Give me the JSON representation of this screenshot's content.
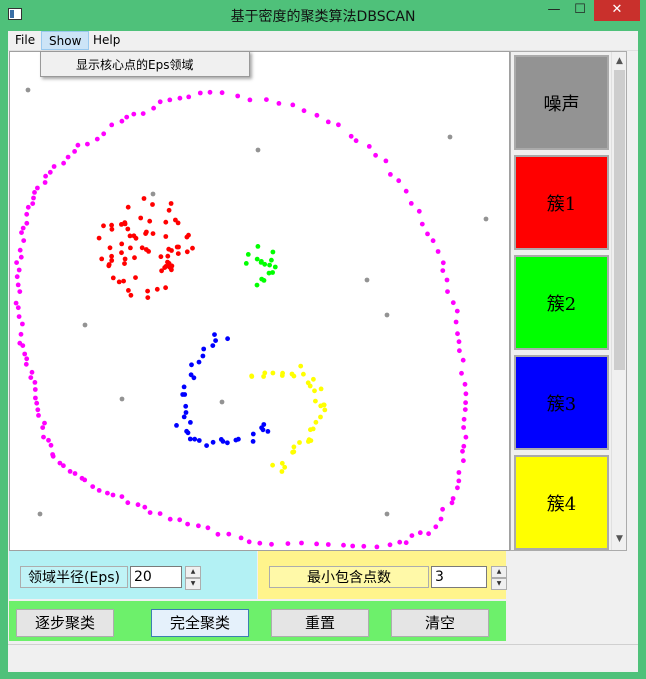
{
  "window": {
    "title": "基于密度的聚类算法DBSCAN",
    "minimize_glyph": "—",
    "maximize_glyph": "☐",
    "close_glyph": "✕"
  },
  "menubar": {
    "items": [
      {
        "label": "File"
      },
      {
        "label": "Show"
      },
      {
        "label": "Help"
      }
    ]
  },
  "show_menu": {
    "items": [
      {
        "label": "显示核心点的Eps领域"
      }
    ]
  },
  "legend": {
    "items": [
      {
        "label": "噪声",
        "color": "#939393"
      },
      {
        "label": "簇1",
        "color": "#ff0000"
      },
      {
        "label": "簇2",
        "color": "#00ff00"
      },
      {
        "label": "簇3",
        "color": "#0000ff"
      },
      {
        "label": "簇4",
        "color": "#ffff00"
      }
    ],
    "scroll_up_glyph": "▲",
    "scroll_down_glyph": "▼"
  },
  "params": {
    "eps_label": "领域半径(Eps)",
    "eps_value": "20",
    "min_points_label": "最小包含点数",
    "min_points_value": "3",
    "spin_up_glyph": "▲",
    "spin_down_glyph": "▼"
  },
  "buttons": {
    "step": "逐步聚类",
    "full": "完全聚类",
    "reset": "重置",
    "clear": "清空"
  },
  "colors": {
    "noise": "#939393",
    "ring": "#ff00ff",
    "cluster1": "#ff0000",
    "cluster2": "#00ff00",
    "cluster3": "#0000ff",
    "cluster4": "#ffff00",
    "eps_panel": "#b3f1f4",
    "minpts_panel": "#fff48c",
    "button_panel": "#6df06b",
    "window_frame": "#4fc17a"
  }
}
